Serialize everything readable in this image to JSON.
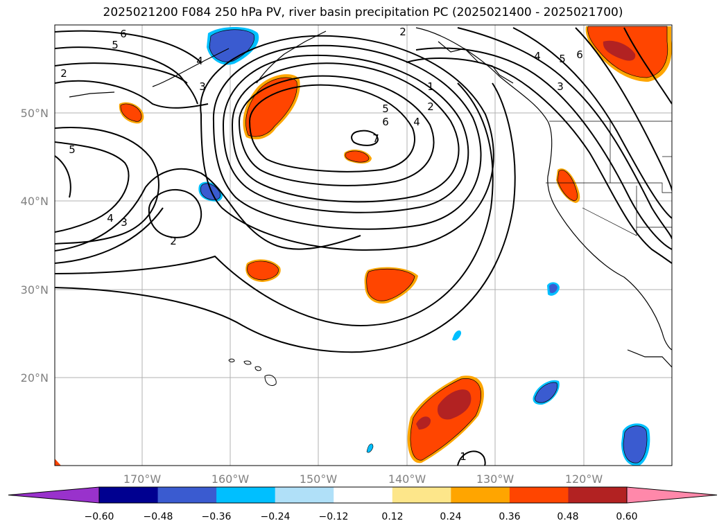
{
  "title": "2025021200 F084 250 hPa PV, river basin precipitation PC (2025021400 - 2025021700)",
  "lat_labels": [
    "50°N",
    "40°N",
    "30°N",
    "20°N"
  ],
  "lon_labels": [
    "170°W",
    "160°W",
    "150°W",
    "140°W",
    "130°W",
    "120°W"
  ],
  "contour_labels": [
    "6",
    "5",
    "4",
    "3",
    "2",
    "5",
    "4",
    "3",
    "2",
    "7",
    "6",
    "5",
    "4",
    "2",
    "1",
    "2",
    "4",
    "5",
    "6",
    "3",
    "1"
  ],
  "colorbar": {
    "ticks": [
      "−0.60",
      "−0.48",
      "−0.36",
      "−0.24",
      "−0.12",
      "0.12",
      "0.24",
      "0.36",
      "0.48",
      "0.60"
    ],
    "colors": {
      "under": "#9932cc",
      "bins": [
        "#000090",
        "#3a5bd0",
        "#00bfff",
        "#b0e0f8",
        "#ffffff",
        "#fde68a",
        "#ffa500",
        "#ff4500",
        "#b22222"
      ],
      "over": "#ff88aa"
    }
  },
  "map_colors": {
    "pos_outer": "#ffa500",
    "pos_main": "#ff4500",
    "pos_core": "#b22222",
    "neg_outer": "#00bfff",
    "neg_main": "#3a5bd0"
  }
}
